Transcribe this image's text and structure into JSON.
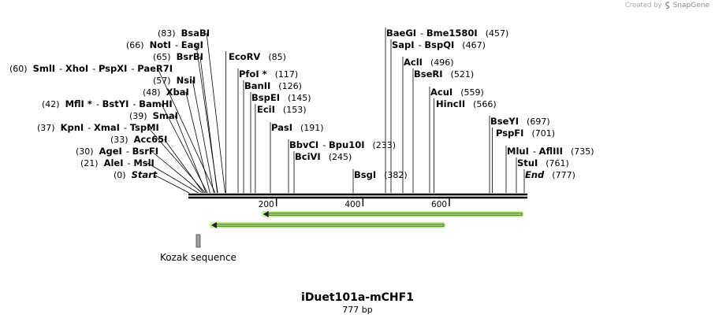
{
  "credit": {
    "prefix": "Created by",
    "brand": "SnapGene"
  },
  "title": "iDuet101a-mCHF1",
  "length_label": "777 bp",
  "sequence_length": 777,
  "ticks": [
    {
      "value": 200,
      "label": "200"
    },
    {
      "value": 400,
      "label": "400"
    },
    {
      "value": 600,
      "label": "600"
    }
  ],
  "features": [
    {
      "name": "Kozak sequence",
      "start": 20,
      "end": 22
    }
  ],
  "arrows": [
    {
      "name": "arrow-top",
      "start": 171,
      "end": 770,
      "direction": "reverse"
    },
    {
      "name": "arrow-bottom",
      "start": 51,
      "end": 589,
      "direction": "reverse"
    }
  ],
  "site_groups": [
    {
      "pos": "(83)",
      "pos_num": 83,
      "names": [
        "BsaBI"
      ]
    },
    {
      "pos": "(66)",
      "pos_num": 66,
      "names": [
        "NotI",
        "EagI"
      ]
    },
    {
      "pos": "(65)",
      "pos_num": 65,
      "names": [
        "BsrBI"
      ]
    },
    {
      "pos": "(60)",
      "pos_num": 60,
      "names": [
        "SmlI",
        "XhoI",
        "PspXI",
        "PaeR7I"
      ]
    },
    {
      "pos": "(57)",
      "pos_num": 57,
      "names": [
        "NsiI"
      ]
    },
    {
      "pos": "(48)",
      "pos_num": 48,
      "names": [
        "XbaI"
      ]
    },
    {
      "pos": "(42)",
      "pos_num": 42,
      "names": [
        "MflI *",
        "BstYI",
        "BamHI"
      ]
    },
    {
      "pos": "(39)",
      "pos_num": 39,
      "names": [
        "SmaI"
      ]
    },
    {
      "pos": "(37)",
      "pos_num": 37,
      "names": [
        "KpnI",
        "XmaI",
        "TspMI"
      ]
    },
    {
      "pos": "(33)",
      "pos_num": 33,
      "names": [
        "Acc65I"
      ]
    },
    {
      "pos": "(30)",
      "pos_num": 30,
      "names": [
        "AgeI",
        "BsrFI"
      ]
    },
    {
      "pos": "(21)",
      "pos_num": 21,
      "names": [
        "AleI",
        "MslI"
      ]
    },
    {
      "pos": "(0)",
      "pos_num": 0,
      "names": [
        "Start"
      ]
    },
    {
      "pos": "(85)",
      "pos_num": 85,
      "names": [
        "EcoRV"
      ]
    },
    {
      "pos": "(117)",
      "pos_num": 117,
      "names": [
        "PfoI *"
      ]
    },
    {
      "pos": "(126)",
      "pos_num": 126,
      "names": [
        "BanII"
      ]
    },
    {
      "pos": "(145)",
      "pos_num": 145,
      "names": [
        "BspEI"
      ]
    },
    {
      "pos": "(153)",
      "pos_num": 153,
      "names": [
        "EciI"
      ]
    },
    {
      "pos": "(191)",
      "pos_num": 191,
      "names": [
        "PasI"
      ]
    },
    {
      "pos": "(233)",
      "pos_num": 233,
      "names": [
        "BbvCI",
        "Bpu10I"
      ]
    },
    {
      "pos": "(245)",
      "pos_num": 245,
      "names": [
        "BciVI"
      ]
    },
    {
      "pos": "(382)",
      "pos_num": 382,
      "names": [
        "BsgI"
      ]
    },
    {
      "pos": "(457)",
      "pos_num": 457,
      "names": [
        "BaeGI",
        "Bme1580I"
      ]
    },
    {
      "pos": "(467)",
      "pos_num": 467,
      "names": [
        "SapI",
        "BspQI"
      ]
    },
    {
      "pos": "(496)",
      "pos_num": 496,
      "names": [
        "AclI"
      ]
    },
    {
      "pos": "(521)",
      "pos_num": 521,
      "names": [
        "BseRI"
      ]
    },
    {
      "pos": "(559)",
      "pos_num": 559,
      "names": [
        "AcuI"
      ]
    },
    {
      "pos": "(566)",
      "pos_num": 566,
      "names": [
        "HincII"
      ]
    },
    {
      "pos": "(697)",
      "pos_num": 697,
      "names": [
        "BseYI"
      ]
    },
    {
      "pos": "(701)",
      "pos_num": 701,
      "names": [
        "PspFI"
      ]
    },
    {
      "pos": "(735)",
      "pos_num": 735,
      "names": [
        "MluI",
        "AflIII"
      ]
    },
    {
      "pos": "(761)",
      "pos_num": 761,
      "names": [
        "StuI"
      ]
    },
    {
      "pos": "(777)",
      "pos_num": 777,
      "names": [
        "End"
      ]
    }
  ],
  "colors": {
    "arrow_fill": "#8fd14f",
    "arrow_glow": "#c6ef9e",
    "feature_fill": "#a0a0a0",
    "line": "#000000"
  }
}
